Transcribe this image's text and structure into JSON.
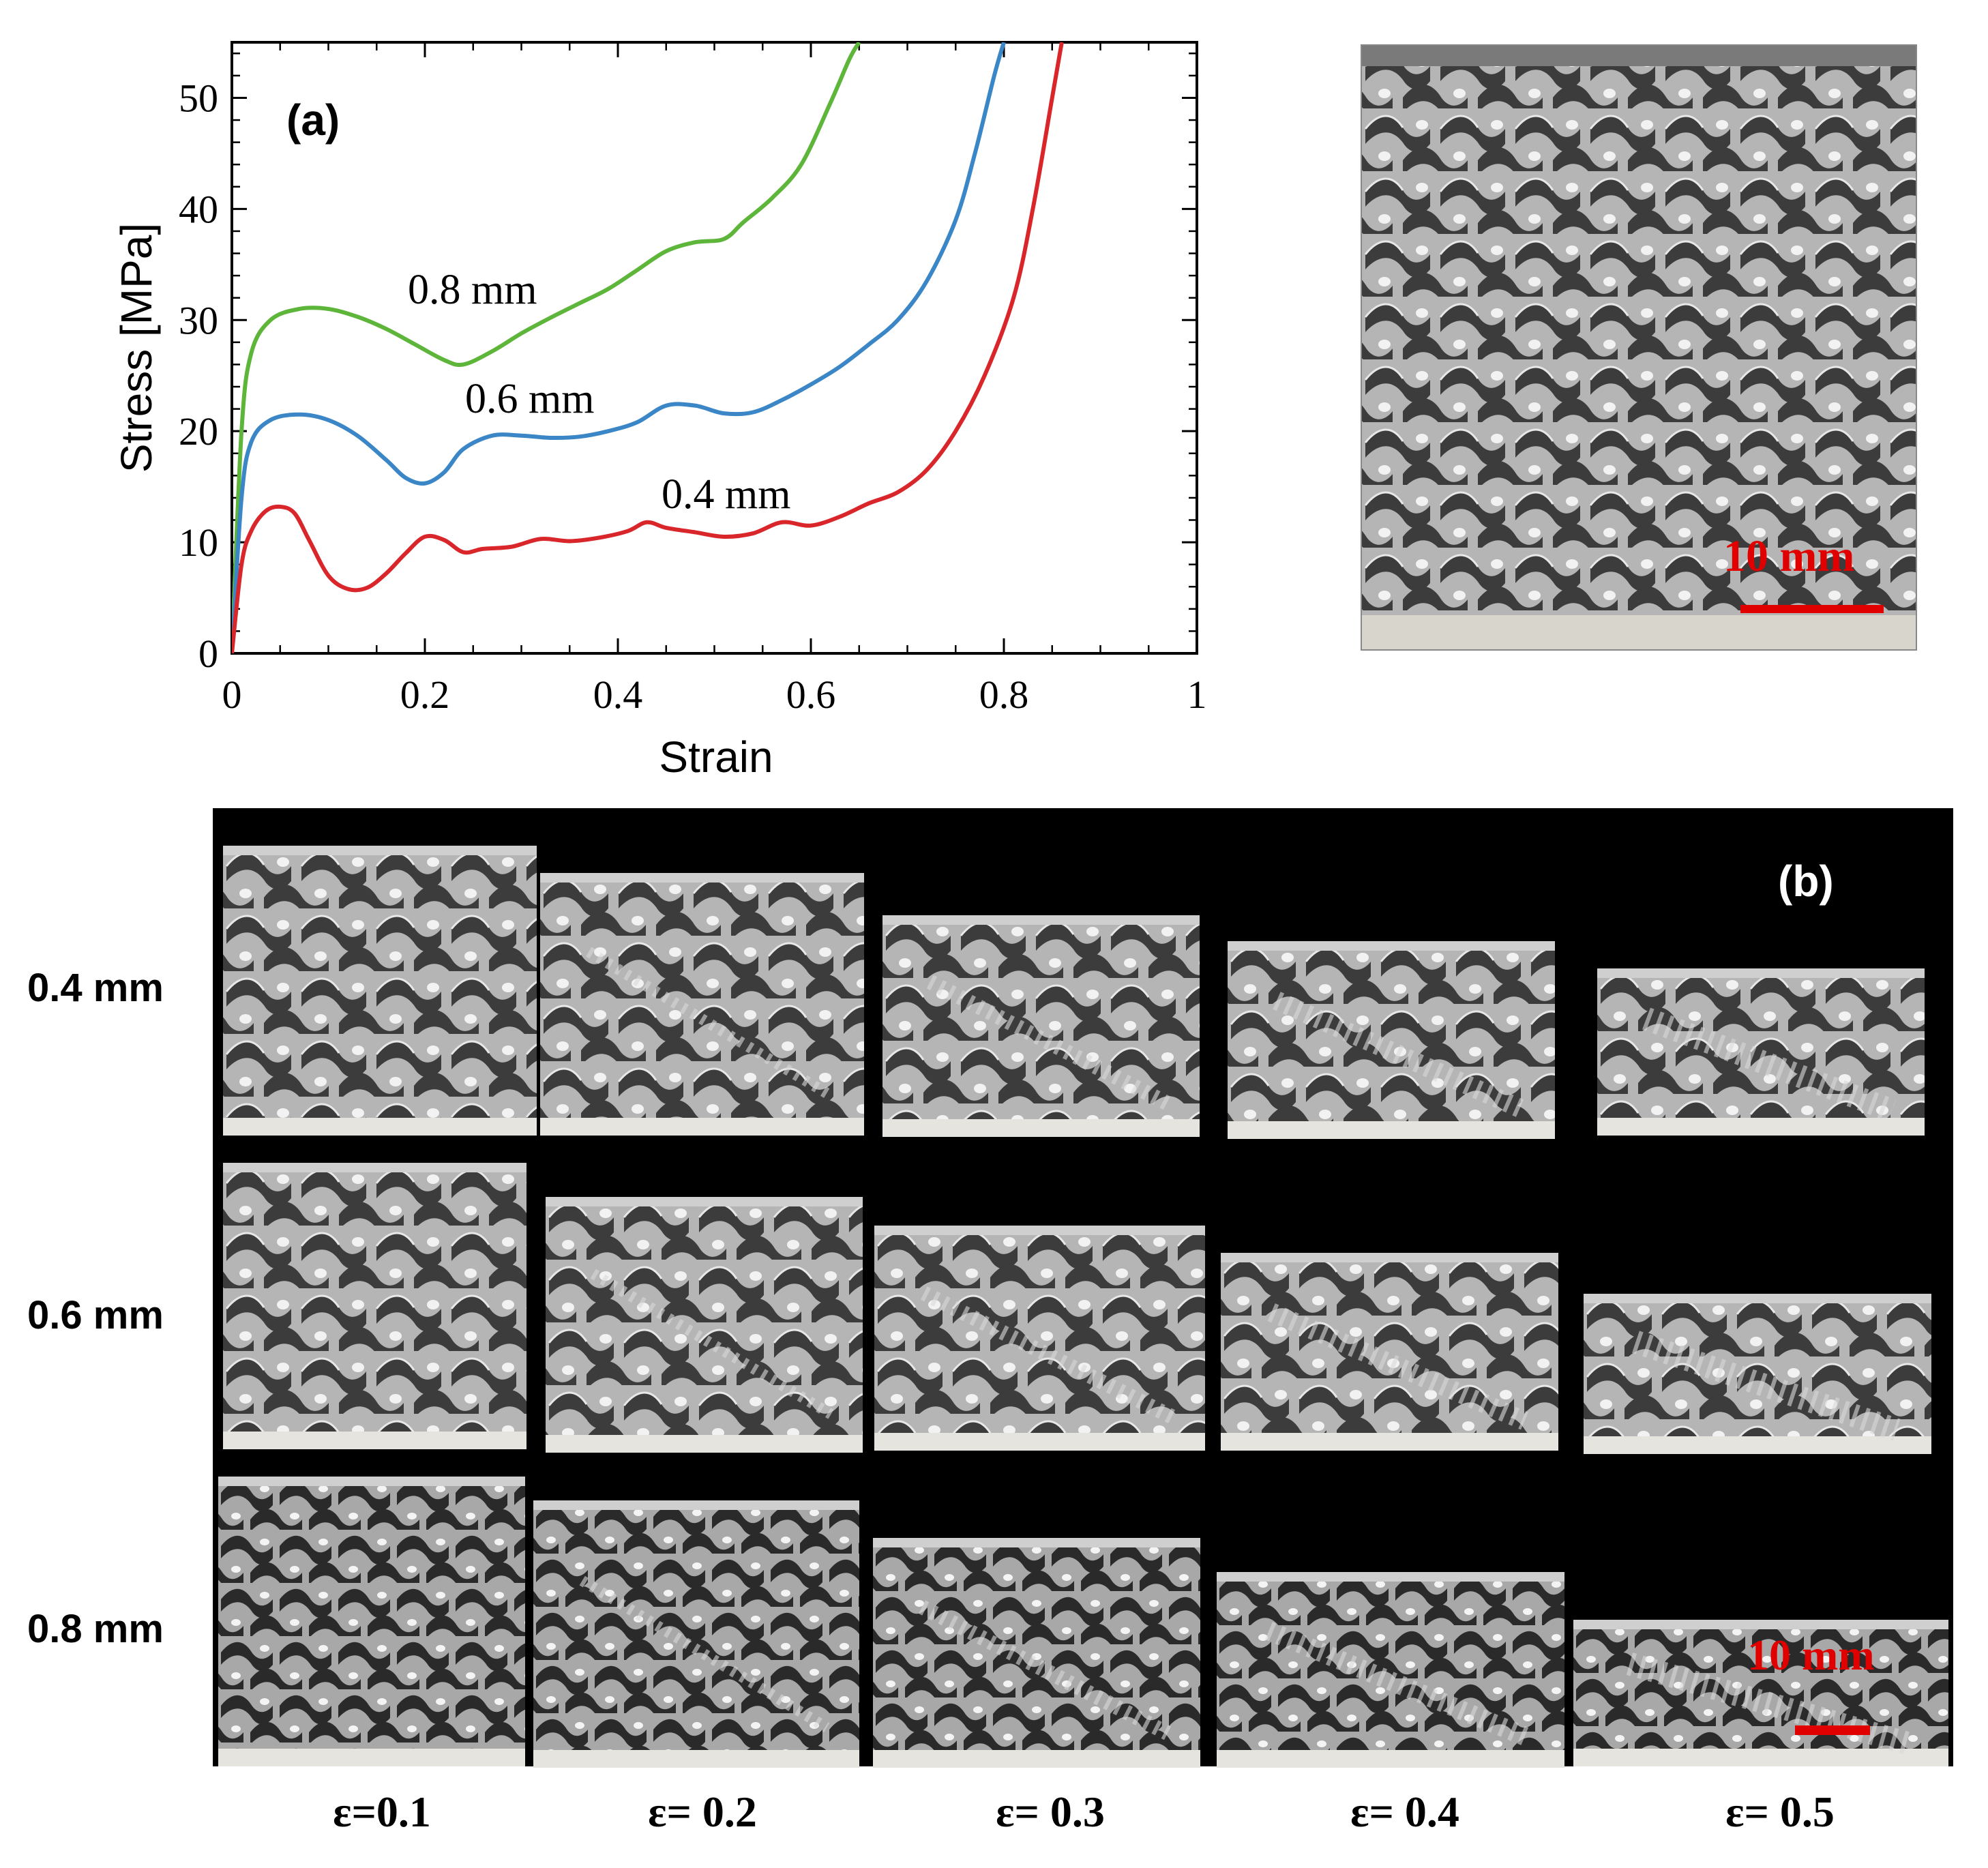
{
  "chart_data": {
    "type": "line",
    "panel_label": "(a)",
    "xlabel": "Strain",
    "ylabel": "Stress [MPa]",
    "xlim": [
      0,
      1
    ],
    "ylim": [
      0,
      55
    ],
    "xticks": [
      "0",
      "0.2",
      "0.4",
      "0.6",
      "0.8",
      "1"
    ],
    "xtick_values": [
      0,
      0.2,
      0.4,
      0.6,
      0.8,
      1
    ],
    "yticks": [
      "0",
      "10",
      "20",
      "30",
      "40",
      "50"
    ],
    "ytick_values": [
      0,
      10,
      20,
      30,
      40,
      50
    ],
    "series": [
      {
        "name": "0.8 mm",
        "color": "#5db53a",
        "x": [
          0,
          0.01,
          0.02,
          0.04,
          0.07,
          0.1,
          0.13,
          0.16,
          0.19,
          0.22,
          0.24,
          0.27,
          0.3,
          0.33,
          0.36,
          0.39,
          0.42,
          0.45,
          0.48,
          0.51,
          0.53,
          0.56,
          0.59,
          0.62,
          0.64,
          0.65
        ],
        "y": [
          0,
          20,
          27,
          30,
          31,
          31,
          30.3,
          29.2,
          27.8,
          26.4,
          26,
          27.2,
          28.8,
          30.2,
          31.5,
          32.8,
          34.5,
          36.2,
          37,
          37.3,
          38.8,
          41,
          44,
          49.5,
          53.5,
          55
        ]
      },
      {
        "name": "0.6 mm",
        "color": "#3a86c6",
        "x": [
          0,
          0.01,
          0.02,
          0.04,
          0.07,
          0.1,
          0.13,
          0.16,
          0.18,
          0.2,
          0.22,
          0.24,
          0.27,
          0.3,
          0.33,
          0.36,
          0.39,
          0.42,
          0.45,
          0.48,
          0.51,
          0.54,
          0.57,
          0.6,
          0.63,
          0.66,
          0.69,
          0.72,
          0.75,
          0.77,
          0.79,
          0.8
        ],
        "y": [
          0,
          14,
          19,
          21,
          21.5,
          21,
          19.6,
          17.4,
          15.8,
          15.3,
          16.3,
          18.4,
          19.6,
          19.6,
          19.4,
          19.5,
          20,
          20.8,
          22.3,
          22.3,
          21.6,
          21.7,
          22.8,
          24.2,
          25.8,
          27.8,
          30,
          33.5,
          39,
          45,
          52,
          55
        ]
      },
      {
        "name": "0.4 mm",
        "color": "#d9262a",
        "x": [
          0,
          0.01,
          0.02,
          0.035,
          0.05,
          0.065,
          0.08,
          0.1,
          0.12,
          0.14,
          0.16,
          0.18,
          0.2,
          0.22,
          0.24,
          0.26,
          0.29,
          0.32,
          0.35,
          0.38,
          0.41,
          0.43,
          0.45,
          0.48,
          0.51,
          0.54,
          0.57,
          0.6,
          0.63,
          0.66,
          0.69,
          0.72,
          0.75,
          0.78,
          0.81,
          0.83,
          0.85,
          0.86
        ],
        "y": [
          0,
          8,
          11,
          12.8,
          13.2,
          12.6,
          10.2,
          7,
          5.8,
          5.9,
          7.2,
          9,
          10.5,
          10.2,
          9.1,
          9.4,
          9.6,
          10.3,
          10.1,
          10.4,
          11,
          11.8,
          11.3,
          10.9,
          10.5,
          10.8,
          11.8,
          11.5,
          12.3,
          13.5,
          14.5,
          16.5,
          20,
          25,
          32,
          40,
          50,
          55
        ]
      }
    ]
  },
  "photo_top": {
    "scale_bar_label": "10 mm",
    "scale_color": "#e00000"
  },
  "panel_b": {
    "panel_label": "(b)",
    "row_labels": [
      "0.4 mm",
      "0.6 mm",
      "0.8 mm"
    ],
    "column_labels": [
      "ε=0.1",
      "ε= 0.2",
      "ε= 0.3",
      "ε= 0.4",
      "ε= 0.5"
    ],
    "scale_bar_label": "10 mm"
  }
}
